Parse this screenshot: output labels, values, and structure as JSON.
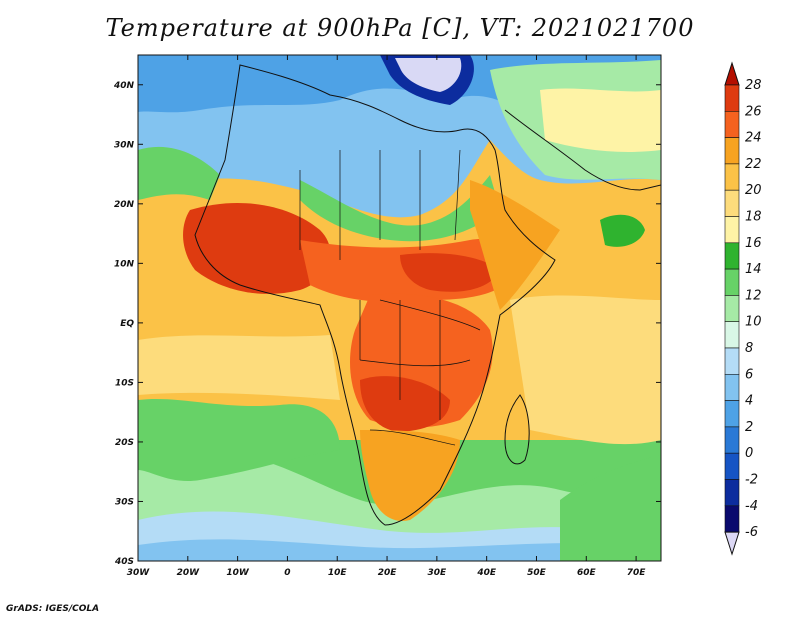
{
  "title": "Temperature at 900hPa [C], VT: 2021021700",
  "credit": "GrADS: IGES/COLA",
  "map": {
    "projection": "latlon",
    "lon_range": [
      -30,
      75
    ],
    "lat_range": [
      -40,
      45
    ],
    "x_ticks": [
      "30W",
      "20W",
      "10W",
      "0",
      "10E",
      "20E",
      "30E",
      "40E",
      "50E",
      "60E",
      "70E"
    ],
    "y_ticks": [
      "40N",
      "30N",
      "20N",
      "10N",
      "EQ",
      "10S",
      "20S",
      "30S",
      "40S"
    ]
  },
  "colorbar": {
    "labels": [
      "28",
      "26",
      "24",
      "22",
      "20",
      "18",
      "16",
      "14",
      "12",
      "10",
      "8",
      "6",
      "4",
      "2",
      "0",
      "-2",
      "-4",
      "-6"
    ],
    "colors": [
      "#b40f00",
      "#de3b10",
      "#f5621f",
      "#f7a321",
      "#fbc247",
      "#fddc7c",
      "#fef3a6",
      "#2fb32f",
      "#67d267",
      "#a6eaa6",
      "#d9f7e6",
      "#b4dcf6",
      "#82c3f0",
      "#4ea2e6",
      "#2a79d6",
      "#1654c4",
      "#0c2c9e",
      "#0a0a6e"
    ],
    "units": "C"
  }
}
